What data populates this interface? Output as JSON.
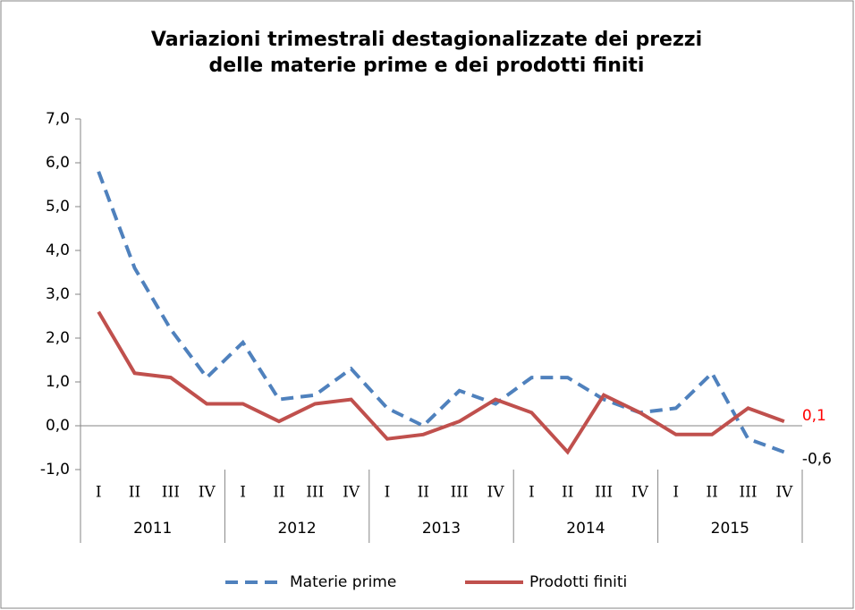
{
  "chart_data": {
    "type": "line",
    "title": [
      "Variazioni trimestrali destagionalizzate dei prezzi",
      "delle materie prime e dei prodotti finiti"
    ],
    "categories": [
      "I",
      "II",
      "III",
      "IV",
      "I",
      "II",
      "III",
      "IV",
      "I",
      "II",
      "III",
      "IV",
      "I",
      "II",
      "III",
      "IV",
      "I",
      "II",
      "III",
      "IV"
    ],
    "groups": [
      "2011",
      "2012",
      "2013",
      "2014",
      "2015"
    ],
    "series": [
      {
        "name": "Materie prime",
        "color": "#4f81bd",
        "dash": true,
        "label_color": "#000000",
        "values": [
          5.8,
          3.6,
          2.2,
          1.1,
          1.9,
          0.6,
          0.7,
          1.3,
          0.4,
          0.0,
          0.8,
          0.5,
          1.1,
          1.1,
          0.6,
          0.3,
          0.4,
          1.2,
          -0.3,
          -0.6
        ],
        "value_labels": [
          null,
          null,
          null,
          null,
          null,
          null,
          null,
          null,
          null,
          null,
          null,
          null,
          null,
          null,
          null,
          null,
          null,
          null,
          null,
          "-0,6"
        ]
      },
      {
        "name": "Prodotti finiti",
        "color": "#c0504d",
        "dash": false,
        "label_color": "#ff0000",
        "values": [
          2.6,
          1.2,
          1.1,
          0.5,
          0.5,
          0.1,
          0.5,
          0.6,
          -0.3,
          -0.2,
          0.1,
          0.6,
          0.3,
          -0.6,
          0.7,
          0.3,
          -0.2,
          -0.2,
          0.4,
          0.1
        ],
        "value_labels": [
          null,
          null,
          null,
          null,
          null,
          null,
          null,
          null,
          null,
          null,
          null,
          null,
          null,
          null,
          null,
          null,
          null,
          null,
          null,
          "0,1"
        ]
      }
    ],
    "ylim": [
      -1,
      7
    ],
    "yticks": [
      {
        "value": -1,
        "label": "-1,0"
      },
      {
        "value": 0,
        "label": "0,0"
      },
      {
        "value": 1,
        "label": "1,0"
      },
      {
        "value": 2,
        "label": "2,0"
      },
      {
        "value": 3,
        "label": "3,0"
      },
      {
        "value": 4,
        "label": "4,0"
      },
      {
        "value": 5,
        "label": "5,0"
      },
      {
        "value": 6,
        "label": "6,0"
      },
      {
        "value": 7,
        "label": "7,0"
      }
    ],
    "grid": false,
    "legend": "bottom"
  }
}
